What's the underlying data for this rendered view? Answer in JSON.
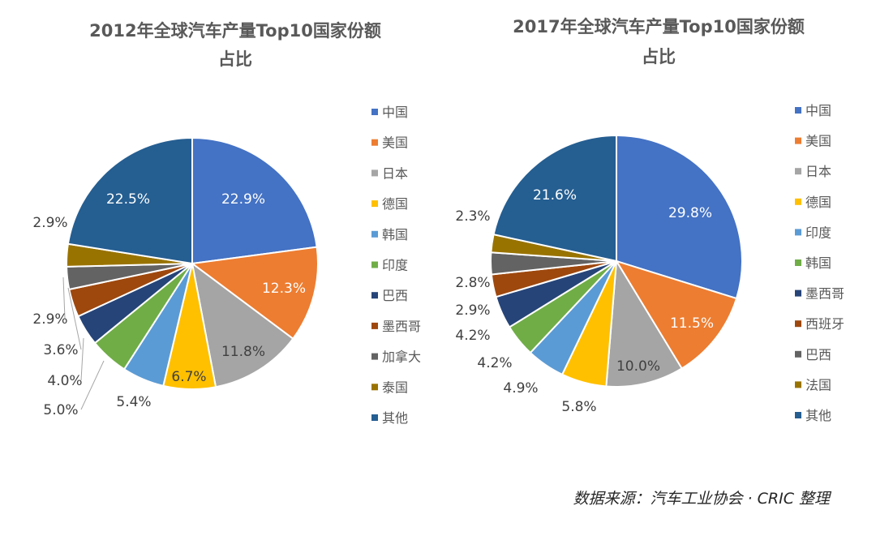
{
  "chart_data": [
    {
      "type": "pie",
      "title_lines": [
        "2012年全球汽车产量Top10国家份额",
        "占比"
      ],
      "categories": [
        "中国",
        "美国",
        "日本",
        "德国",
        "韩国",
        "印度",
        "巴西",
        "墨西哥",
        "加拿大",
        "泰国",
        "其他"
      ],
      "values": [
        22.9,
        12.3,
        11.8,
        6.7,
        5.4,
        5.0,
        4.0,
        3.6,
        2.9,
        2.9,
        22.5
      ],
      "labels": [
        "22.9%",
        "12.3%",
        "11.8%",
        "6.7%",
        "5.4%",
        "5.0%",
        "4.0%",
        "3.6%",
        "2.9%",
        "2.9%",
        "22.5%"
      ],
      "colors": [
        "#4472C4",
        "#ED7D31",
        "#A5A5A5",
        "#FFC000",
        "#5B9BD5",
        "#70AD47",
        "#264478",
        "#9E480E",
        "#636363",
        "#997300",
        "#255E91"
      ],
      "legend_position": "right"
    },
    {
      "type": "pie",
      "title_lines": [
        "2017年全球汽车产量Top10国家份额",
        "占比"
      ],
      "categories": [
        "中国",
        "美国",
        "日本",
        "德国",
        "印度",
        "韩国",
        "墨西哥",
        "西班牙",
        "巴西",
        "法国",
        "其他"
      ],
      "values": [
        29.8,
        11.5,
        10.0,
        5.8,
        4.9,
        4.2,
        4.2,
        2.9,
        2.8,
        2.3,
        21.6
      ],
      "labels": [
        "29.8%",
        "11.5%",
        "10.0%",
        "5.8%",
        "4.9%",
        "4.2%",
        "4.2%",
        "2.9%",
        "2.8%",
        "2.3%",
        "21.6%"
      ],
      "colors": [
        "#4472C4",
        "#ED7D31",
        "#A5A5A5",
        "#FFC000",
        "#5B9BD5",
        "#70AD47",
        "#264478",
        "#9E480E",
        "#636363",
        "#997300",
        "#255E91"
      ],
      "legend_position": "right"
    }
  ],
  "source": "数据来源：汽车工业协会 · CRIC 整理"
}
